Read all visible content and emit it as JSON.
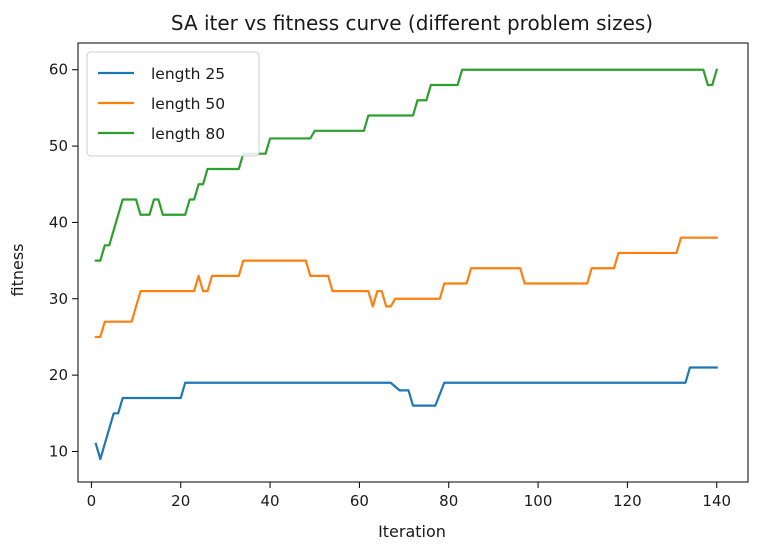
{
  "chart_data": {
    "type": "line",
    "title": "SA iter vs fitness curve (different problem sizes)",
    "xlabel": "Iteration",
    "ylabel": "fitness",
    "xlim": [
      -3,
      147
    ],
    "ylim": [
      6,
      63.5
    ],
    "xticks": [
      0,
      20,
      40,
      60,
      80,
      100,
      120,
      140
    ],
    "yticks": [
      10,
      20,
      30,
      40,
      50,
      60
    ],
    "grid": false,
    "legend": "top-left",
    "series": [
      {
        "name": "length 25",
        "color": "#1f77b4",
        "points": [
          [
            1,
            11
          ],
          [
            2,
            9
          ],
          [
            4,
            13
          ],
          [
            5,
            15
          ],
          [
            6,
            15
          ],
          [
            7,
            17
          ],
          [
            20,
            17
          ],
          [
            21,
            19
          ],
          [
            67,
            19
          ],
          [
            69,
            18
          ],
          [
            71,
            18
          ],
          [
            72,
            16
          ],
          [
            77,
            16
          ],
          [
            79,
            19
          ],
          [
            133,
            19
          ],
          [
            134,
            21
          ],
          [
            140,
            21
          ]
        ]
      },
      {
        "name": "length 50",
        "color": "#ff7f0e",
        "points": [
          [
            1,
            25
          ],
          [
            2,
            25
          ],
          [
            3,
            27
          ],
          [
            9,
            27
          ],
          [
            11,
            31
          ],
          [
            23,
            31
          ],
          [
            24,
            33
          ],
          [
            25,
            31
          ],
          [
            26,
            31
          ],
          [
            27,
            33
          ],
          [
            33,
            33
          ],
          [
            34,
            35
          ],
          [
            48,
            35
          ],
          [
            49,
            33
          ],
          [
            53,
            33
          ],
          [
            54,
            31
          ],
          [
            62,
            31
          ],
          [
            63,
            29
          ],
          [
            64,
            31
          ],
          [
            65,
            31
          ],
          [
            66,
            29
          ],
          [
            67,
            29
          ],
          [
            68,
            30
          ],
          [
            78,
            30
          ],
          [
            79,
            32
          ],
          [
            84,
            32
          ],
          [
            85,
            34
          ],
          [
            96,
            34
          ],
          [
            97,
            32
          ],
          [
            111,
            32
          ],
          [
            112,
            34
          ],
          [
            117,
            34
          ],
          [
            118,
            36
          ],
          [
            131,
            36
          ],
          [
            132,
            38
          ],
          [
            140,
            38
          ]
        ]
      },
      {
        "name": "length 80",
        "color": "#2ca02c",
        "points": [
          [
            1,
            35
          ],
          [
            2,
            35
          ],
          [
            3,
            37
          ],
          [
            4,
            37
          ],
          [
            5,
            39
          ],
          [
            6,
            41
          ],
          [
            7,
            43
          ],
          [
            10,
            43
          ],
          [
            11,
            41
          ],
          [
            13,
            41
          ],
          [
            14,
            43
          ],
          [
            15,
            43
          ],
          [
            16,
            41
          ],
          [
            21,
            41
          ],
          [
            22,
            43
          ],
          [
            23,
            43
          ],
          [
            24,
            45
          ],
          [
            25,
            45
          ],
          [
            26,
            47
          ],
          [
            33,
            47
          ],
          [
            34,
            49
          ],
          [
            39,
            49
          ],
          [
            40,
            51
          ],
          [
            49,
            51
          ],
          [
            50,
            52
          ],
          [
            57,
            52
          ],
          [
            58,
            52
          ],
          [
            61,
            52
          ],
          [
            62,
            54
          ],
          [
            72,
            54
          ],
          [
            73,
            56
          ],
          [
            75,
            56
          ],
          [
            76,
            58
          ],
          [
            80,
            58
          ],
          [
            81,
            58
          ],
          [
            82,
            58
          ],
          [
            83,
            60
          ],
          [
            137,
            60
          ],
          [
            138,
            58
          ],
          [
            139,
            58
          ],
          [
            140,
            60
          ]
        ]
      }
    ]
  }
}
